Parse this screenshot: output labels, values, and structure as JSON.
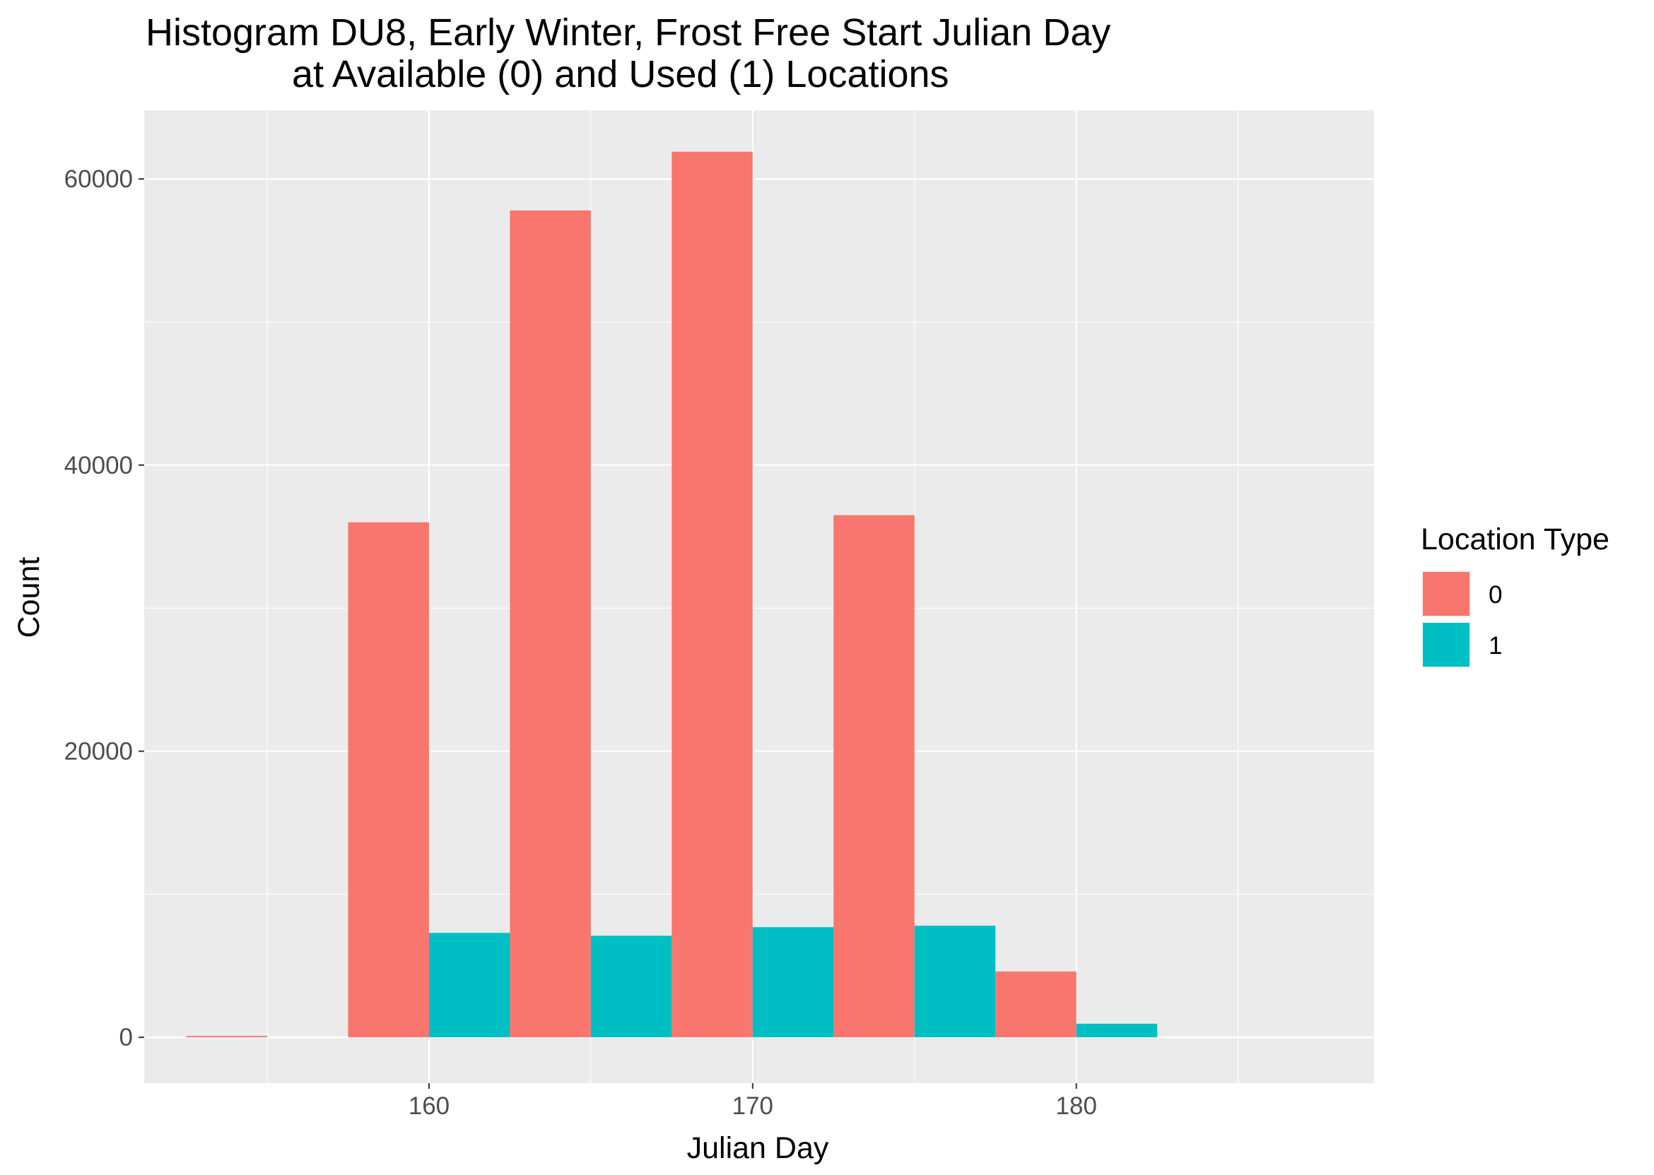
{
  "chart_data": {
    "type": "bar",
    "title_lines": [
      "Histogram DU8, Early Winter, Frost Free Start Julian Day",
      "at Available (0) and Used (1) Locations"
    ],
    "xlabel": "Julian Day",
    "ylabel": "Count",
    "xlim": [
      151.2,
      189.2
    ],
    "ylim": [
      -3200,
      64800
    ],
    "x_ticks": [
      160,
      170,
      180
    ],
    "x_tick_labels": [
      "160",
      "170",
      "180"
    ],
    "y_ticks": [
      0,
      20000,
      40000,
      60000
    ],
    "y_tick_labels": [
      "0",
      "20000",
      "40000",
      "60000"
    ],
    "grid": true,
    "legend": {
      "title": "Location Type",
      "position": "right",
      "entries": [
        "0",
        "1"
      ]
    },
    "bin_width": 5,
    "bin_centers": [
      155,
      160,
      165,
      170,
      175,
      180,
      185
    ],
    "series": [
      {
        "name": "0",
        "color": "#F8766D",
        "values": [
          100,
          36000,
          57800,
          61900,
          36500,
          4600,
          0
        ]
      },
      {
        "name": "1",
        "color": "#00BFC4",
        "values": [
          0,
          7300,
          7100,
          7700,
          7800,
          950,
          0
        ]
      }
    ],
    "colors": {
      "panel_background": "#EBEBEB",
      "grid_line": "#FFFFFF",
      "tick_color": "#333333"
    }
  }
}
